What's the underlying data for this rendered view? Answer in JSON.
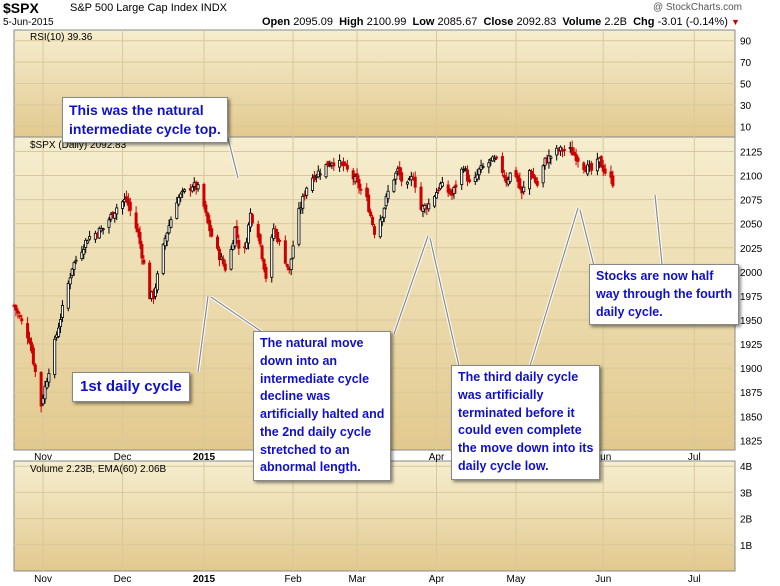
{
  "header": {
    "symbol": "$SPX",
    "name": "S&P 500 Large Cap Index",
    "exchange": "INDX",
    "date": "5-Jun-2015",
    "open_label": "Open",
    "open": "2095.09",
    "high_label": "High",
    "high": "2100.99",
    "low_label": "Low",
    "low": "2085.67",
    "close_label": "Close",
    "close": "2092.83",
    "volume_label": "Volume",
    "volume": "2.2B",
    "chg_label": "Chg",
    "chg": "-3.01 (-0.14%)",
    "watermark": "@ StockCharts.com"
  },
  "annotations": {
    "top": [
      "This was the natural",
      "intermediate cycle top."
    ],
    "first": [
      "1st daily cycle"
    ],
    "halted": [
      "The natural move",
      "down into an",
      "intermediate cycle",
      "decline was",
      "artificially halted and",
      "the 2nd daily cycle",
      "stretched to an",
      "abnormal length."
    ],
    "third": [
      "The third daily cycle",
      "was artificially",
      "terminated before it",
      "could even complete",
      "the move down into its",
      "daily cycle low."
    ],
    "fourth": [
      "Stocks are now half",
      "way through the fourth",
      "daily cycle."
    ]
  },
  "colors": {
    "up": "#000000",
    "down": "#cc0000",
    "panel_top": "#f5ecc8",
    "panel_bottom": "#e3c98a",
    "text_box": "#1010c8"
  },
  "chart_data": [
    {
      "type": "line",
      "title": "RSI(10) 39.36",
      "panel": "top",
      "ylim": [
        0,
        100
      ],
      "y_ticks": [
        10,
        30,
        50,
        70,
        90
      ],
      "values": []
    },
    {
      "type": "candlestick",
      "title": "$SPX (Daily) 2092.83",
      "panel": "main",
      "ylim": [
        1815,
        2140
      ],
      "y_ticks": [
        1825,
        1850,
        1875,
        1900,
        1925,
        1950,
        1975,
        2000,
        2025,
        2050,
        2075,
        2100,
        2125
      ],
      "x_ticks": [
        "Nov",
        "Dec",
        "2015",
        "Feb",
        "Mar",
        "Apr",
        "May",
        "Jun",
        "Jul"
      ],
      "x_tick_days": [
        15,
        56,
        98,
        144,
        177,
        218,
        259,
        304,
        351
      ],
      "anchors": [
        {
          "day": 0,
          "close": 1965
        },
        {
          "day": 8,
          "close": 1930
        },
        {
          "day": 14,
          "close": 1862
        },
        {
          "day": 22,
          "close": 1935
        },
        {
          "day": 30,
          "close": 2005
        },
        {
          "day": 38,
          "close": 2035
        },
        {
          "day": 46,
          "close": 2045
        },
        {
          "day": 54,
          "close": 2070
        },
        {
          "day": 58,
          "close": 2075
        },
        {
          "day": 64,
          "close": 2040
        },
        {
          "day": 70,
          "close": 1975
        },
        {
          "day": 72,
          "close": 1975
        },
        {
          "day": 78,
          "close": 2035
        },
        {
          "day": 84,
          "close": 2075
        },
        {
          "day": 92,
          "close": 2090
        },
        {
          "day": 96,
          "close": 2085
        },
        {
          "day": 100,
          "close": 2050
        },
        {
          "day": 104,
          "close": 2025
        },
        {
          "day": 110,
          "close": 2000
        },
        {
          "day": 114,
          "close": 2045
        },
        {
          "day": 118,
          "close": 2010
        },
        {
          "day": 122,
          "close": 2060
        },
        {
          "day": 126,
          "close": 2040
        },
        {
          "day": 130,
          "close": 1995
        },
        {
          "day": 134,
          "close": 2045
        },
        {
          "day": 138,
          "close": 2025
        },
        {
          "day": 142,
          "close": 2000
        },
        {
          "day": 146,
          "close": 2055
        },
        {
          "day": 152,
          "close": 2095
        },
        {
          "day": 158,
          "close": 2105
        },
        {
          "day": 164,
          "close": 2115
        },
        {
          "day": 170,
          "close": 2110
        },
        {
          "day": 176,
          "close": 2095
        },
        {
          "day": 182,
          "close": 2075
        },
        {
          "day": 186,
          "close": 2042
        },
        {
          "day": 190,
          "close": 2060
        },
        {
          "day": 194,
          "close": 2090
        },
        {
          "day": 198,
          "close": 2105
        },
        {
          "day": 202,
          "close": 2085
        },
        {
          "day": 206,
          "close": 2100
        },
        {
          "day": 210,
          "close": 2065
        },
        {
          "day": 214,
          "close": 2070
        },
        {
          "day": 220,
          "close": 2090
        },
        {
          "day": 226,
          "close": 2080
        },
        {
          "day": 232,
          "close": 2110
        },
        {
          "day": 236,
          "close": 2085
        },
        {
          "day": 240,
          "close": 2105
        },
        {
          "day": 246,
          "close": 2115
        },
        {
          "day": 250,
          "close": 2115
        },
        {
          "day": 254,
          "close": 2095
        },
        {
          "day": 258,
          "close": 2108
        },
        {
          "day": 262,
          "close": 2080
        },
        {
          "day": 266,
          "close": 2105
        },
        {
          "day": 270,
          "close": 2090
        },
        {
          "day": 274,
          "close": 2115
        },
        {
          "day": 280,
          "close": 2125
        },
        {
          "day": 286,
          "close": 2128
        },
        {
          "day": 290,
          "close": 2120
        },
        {
          "day": 294,
          "close": 2110
        },
        {
          "day": 298,
          "close": 2105
        },
        {
          "day": 302,
          "close": 2115
        },
        {
          "day": 306,
          "close": 2100
        },
        {
          "day": 309,
          "close": 2093
        }
      ]
    },
    {
      "type": "bar",
      "title": "Volume 2.23B, EMA(60) 2.06B",
      "panel": "volume",
      "y_ticks": [
        "1B",
        "2B",
        "3B",
        "4B"
      ],
      "ylim": [
        0,
        4.2
      ],
      "x_ticks": [
        "Nov",
        "Dec",
        "2015",
        "Feb",
        "Mar",
        "Apr",
        "May",
        "Jun",
        "Jul"
      ],
      "values": []
    }
  ]
}
